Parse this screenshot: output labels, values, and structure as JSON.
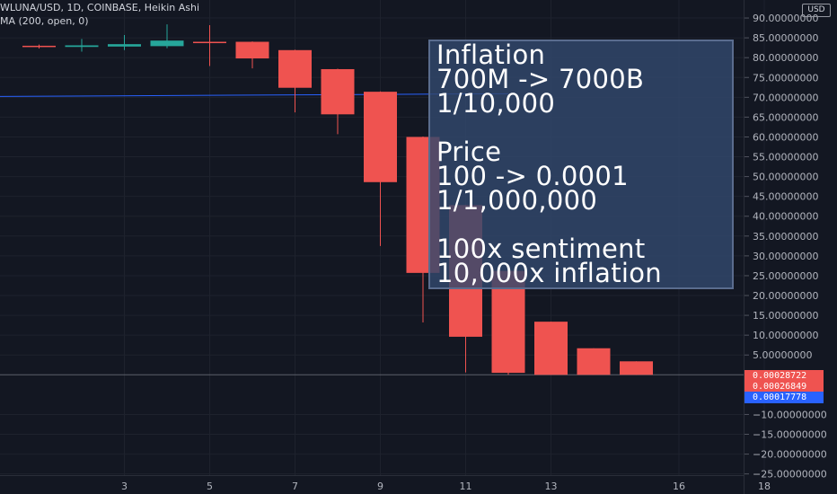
{
  "header": {
    "symbol_line": "WLUNA/USD, 1D, COINBASE, Heikin Ashi",
    "indicator_line": "MA (200, open, 0)"
  },
  "currency": "USD",
  "annotation": "Inflation\n700M -> 7000B\n1/10,000\n\nPrice\n100 -> 0.0001\n1/1,000,000\n\n100x sentiment\n10,000x inflation",
  "price_labels": [
    {
      "text": "0.00028722",
      "color": "#ef5350"
    },
    {
      "text": "0.00026849",
      "color": "#ef5350"
    },
    {
      "text": "0.00017778",
      "color": "#2962ff"
    }
  ],
  "colors": {
    "up": "#26a69a",
    "down": "#ef5350",
    "ma": "#2962ff",
    "background": "#131722",
    "grid": "#1e222d",
    "axis_text": "#b2b5be"
  },
  "chart_data": {
    "type": "candlestick",
    "style": "Heikin Ashi",
    "x_ticks": [
      "3",
      "5",
      "7",
      "9",
      "11",
      "13",
      "16",
      "18"
    ],
    "y_ticks": [
      "90.00000000",
      "85.00000000",
      "80.00000000",
      "75.00000000",
      "70.00000000",
      "65.00000000",
      "60.00000000",
      "55.00000000",
      "50.00000000",
      "45.00000000",
      "40.00000000",
      "35.00000000",
      "30.00000000",
      "25.00000000",
      "20.00000000",
      "15.00000000",
      "10.00000000",
      "5.00000000",
      "−10.00000000",
      "−15.00000000",
      "−20.00000000",
      "−25.00000000"
    ],
    "ylim": [
      -27,
      92
    ],
    "candles": [
      {
        "day": 1,
        "open": 83.0,
        "close": 82.8,
        "high": 83.3,
        "low": 82.3
      },
      {
        "day": 2,
        "open": 82.7,
        "close": 83.1,
        "high": 84.7,
        "low": 81.5
      },
      {
        "day": 3,
        "open": 82.8,
        "close": 83.4,
        "high": 85.7,
        "low": 81.9
      },
      {
        "day": 4,
        "open": 82.9,
        "close": 84.3,
        "high": 88.4,
        "low": 82.4
      },
      {
        "day": 5,
        "open": 84.0,
        "close": 83.8,
        "high": 88.2,
        "low": 77.9
      },
      {
        "day": 6,
        "open": 84.0,
        "close": 79.8,
        "high": 84.1,
        "low": 77.3
      },
      {
        "day": 7,
        "open": 81.9,
        "close": 72.4,
        "high": 82.0,
        "low": 66.2
      },
      {
        "day": 8,
        "open": 77.1,
        "close": 65.7,
        "high": 77.2,
        "low": 60.7
      },
      {
        "day": 9,
        "open": 71.4,
        "close": 48.6,
        "high": 71.5,
        "low": 32.5
      },
      {
        "day": 10,
        "open": 60.0,
        "close": 25.7,
        "high": 60.1,
        "low": 13.2
      },
      {
        "day": 11,
        "open": 42.8,
        "close": 9.6,
        "high": 42.9,
        "low": 0.6
      },
      {
        "day": 12,
        "open": 26.2,
        "close": 0.5,
        "high": 26.3,
        "low": 0.0003
      },
      {
        "day": 13,
        "open": 13.4,
        "close": 0.0003,
        "high": 13.4,
        "low": 0.0003
      },
      {
        "day": 14,
        "open": 6.7,
        "close": 0.0003,
        "high": 6.7,
        "low": 0.0003
      },
      {
        "day": 15,
        "open": 3.4,
        "close": 0.0003,
        "high": 3.4,
        "low": 0.0003
      }
    ],
    "ma": {
      "name": "MA (200, open, 0)",
      "start": {
        "day": 0,
        "value": 70.2
      },
      "end": {
        "day": 12,
        "value": 70.9
      }
    },
    "last_price": 0.00028722
  }
}
